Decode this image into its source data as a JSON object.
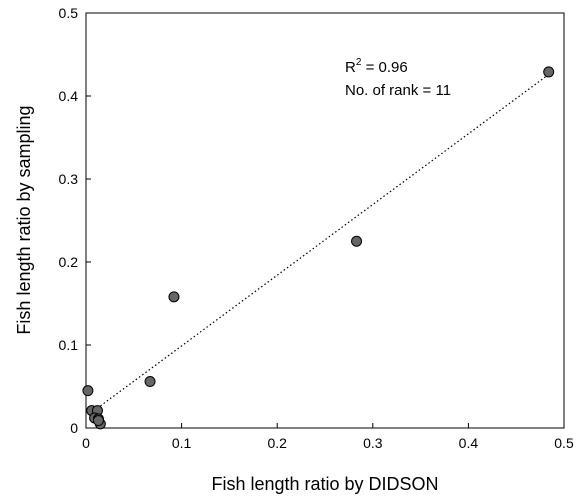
{
  "chart_data": {
    "type": "scatter",
    "xlabel": "Fish length ratio by DIDSON",
    "ylabel": "Fish length ratio by sampling",
    "xlim": [
      0,
      0.5
    ],
    "ylim": [
      0,
      0.5
    ],
    "x_ticks": [
      "0",
      "0.1",
      "0.2",
      "0.3",
      "0.4",
      "0.5"
    ],
    "y_ticks": [
      "0",
      "0.1",
      "0.2",
      "0.3",
      "0.4",
      "0.5"
    ],
    "grid": false,
    "marker_color": "#666666",
    "points": [
      {
        "x": 0.484,
        "y": 0.429
      },
      {
        "x": 0.283,
        "y": 0.225
      },
      {
        "x": 0.092,
        "y": 0.158
      },
      {
        "x": 0.067,
        "y": 0.056
      },
      {
        "x": 0.002,
        "y": 0.045
      },
      {
        "x": 0.006,
        "y": 0.021
      },
      {
        "x": 0.012,
        "y": 0.021
      },
      {
        "x": 0.009,
        "y": 0.012
      },
      {
        "x": 0.013,
        "y": 0.011
      },
      {
        "x": 0.015,
        "y": 0.005
      },
      {
        "x": 0.013,
        "y": 0.009
      }
    ],
    "fit_line": {
      "x": [
        0.005,
        0.484
      ],
      "y": [
        0.018,
        0.426
      ],
      "style": "dotted"
    },
    "annotations": {
      "r_label": "R",
      "r_sup": "2",
      "r_value": " = 0.96",
      "rank_text": "No. of rank = 11"
    }
  }
}
